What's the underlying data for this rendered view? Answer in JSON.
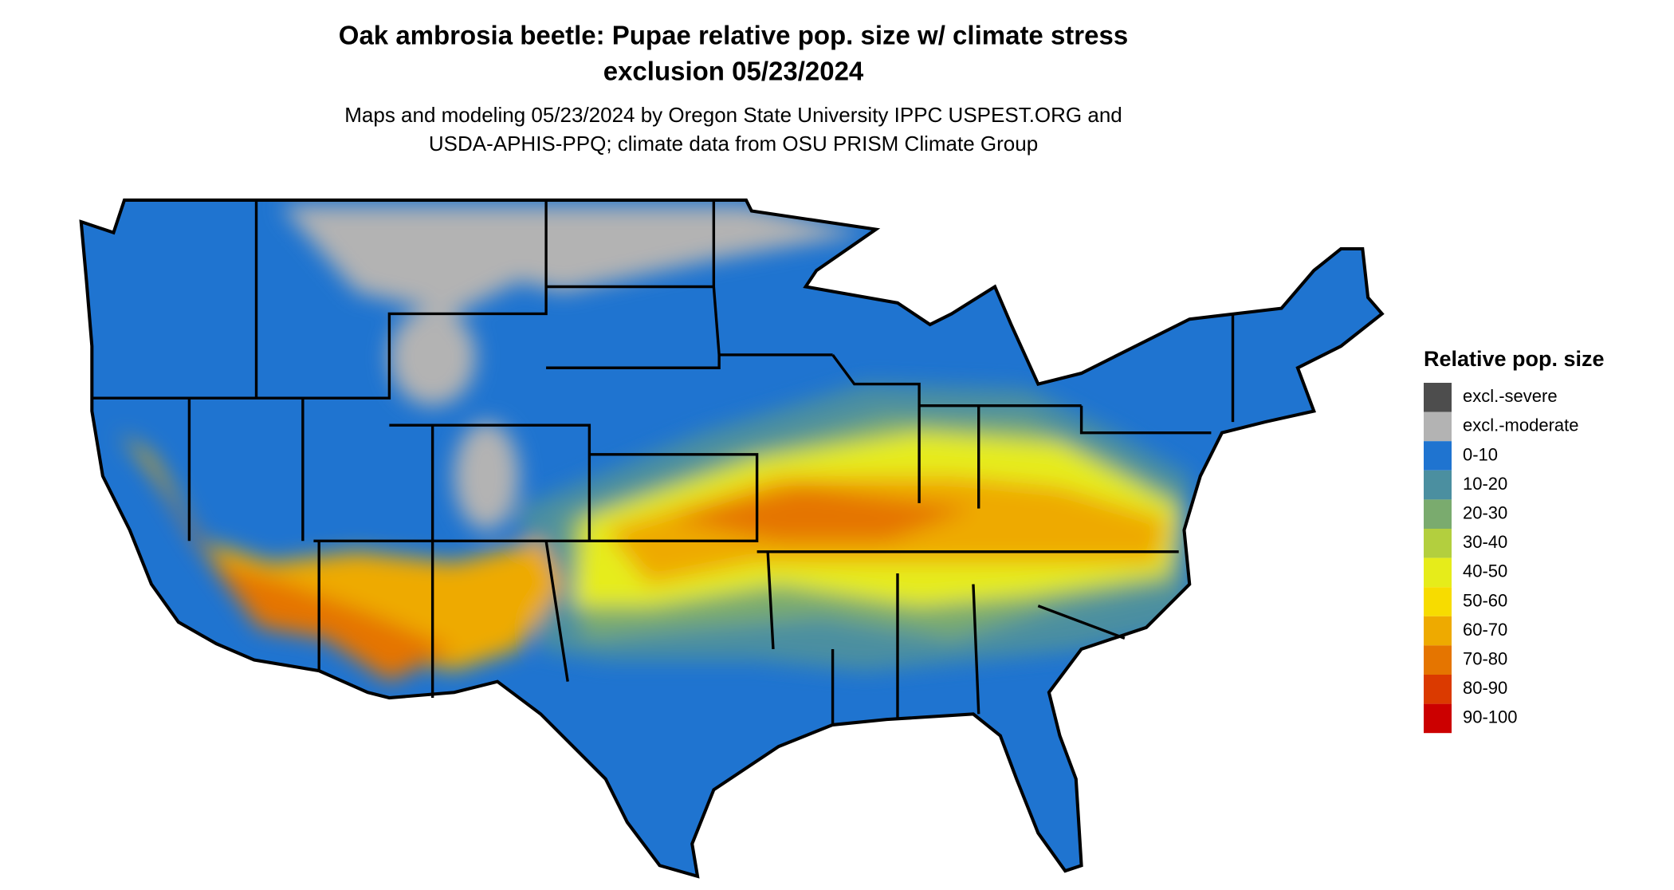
{
  "title": [
    "Oak ambrosia beetle: Pupae relative pop. size w/ climate stress",
    "exclusion 05/23/2024"
  ],
  "subtitle": [
    "Maps and modeling 05/23/2024 by Oregon State University IPPC USPEST.ORG and",
    "USDA-APHIS-PPQ; climate data from OSU PRISM Climate Group"
  ],
  "legend": {
    "title": "Relative pop. size",
    "items": [
      {
        "label": "excl.-severe",
        "color": "#4d4d4d"
      },
      {
        "label": "excl.-moderate",
        "color": "#b3b3b3"
      },
      {
        "label": "0-10",
        "color": "#1f74d0"
      },
      {
        "label": "10-20",
        "color": "#4b8fa0"
      },
      {
        "label": "20-30",
        "color": "#7aab6e"
      },
      {
        "label": "30-40",
        "color": "#b3cf3e"
      },
      {
        "label": "40-50",
        "color": "#e6ec1a"
      },
      {
        "label": "50-60",
        "color": "#f7dc00"
      },
      {
        "label": "60-70",
        "color": "#eeaa00"
      },
      {
        "label": "70-80",
        "color": "#e57500"
      },
      {
        "label": "80-90",
        "color": "#db3a00"
      },
      {
        "label": "90-100",
        "color": "#cc0000"
      }
    ]
  }
}
